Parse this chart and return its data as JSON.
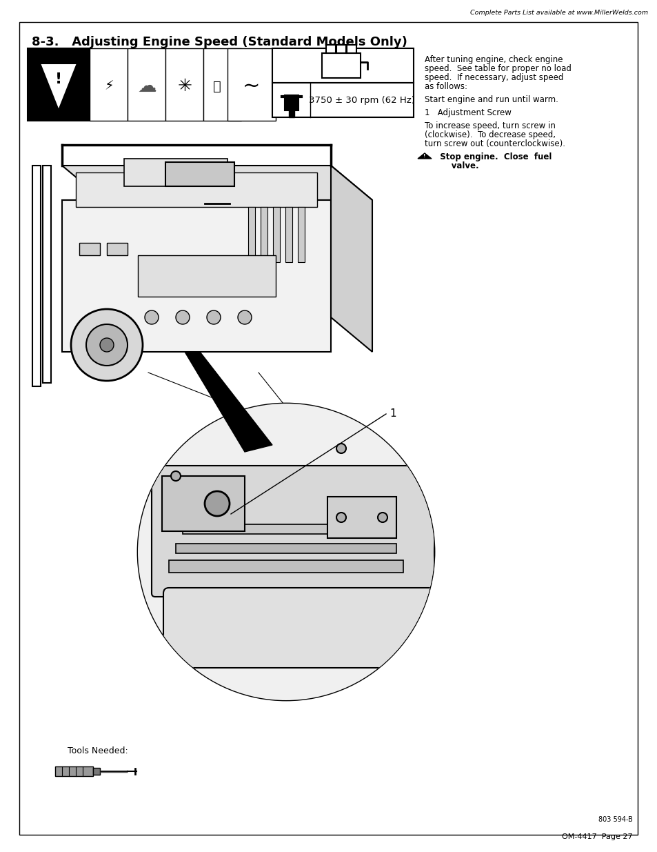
{
  "header_text": "Complete Parts List available at www.MillerWelds.com",
  "page_title": "8-3.   Adjusting Engine Speed (Standard Models Only)",
  "rpm_text": "3750 ± 30 rpm (62 Hz)",
  "right_col_texts": [
    [
      "After tuning engine, check engine",
      false
    ],
    [
      "speed.  See table for proper no load",
      false
    ],
    [
      "speed.  If necessary, adjust speed",
      false
    ],
    [
      "as follows:",
      false
    ],
    [
      "",
      false
    ],
    [
      "Start engine and run until warm.",
      false
    ],
    [
      "",
      false
    ],
    [
      "1   Adjustment Screw",
      false
    ],
    [
      "",
      false
    ],
    [
      "To increase speed, turn screw in",
      false
    ],
    [
      "(clockwise).  To decrease speed,",
      false
    ],
    [
      "turn screw out (counterclockwise).",
      false
    ],
    [
      "",
      false
    ],
    [
      "Stop engine.  Close  fuel",
      true
    ],
    [
      "valve.",
      true
    ]
  ],
  "label_1": "1",
  "tools_label": "Tools Needed:",
  "bottom_ref": "803 594-B",
  "bottom_page": "OM-4417  Page 27",
  "bg": "#ffffff",
  "black": "#000000",
  "gray_light": "#e8e8e8",
  "gray_mid": "#c8c8c8",
  "gray_dark": "#888888"
}
